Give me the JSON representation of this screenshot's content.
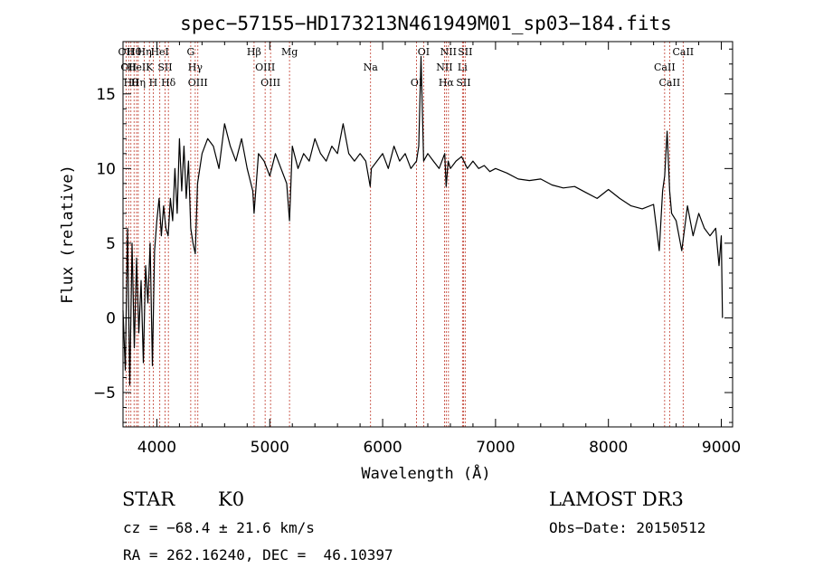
{
  "chart_data": {
    "type": "line",
    "title": "spec−57155−HD173213N461949M01_sp03−184.fits",
    "xlabel": "Wavelength (Å)",
    "ylabel": "Flux (relative)",
    "xlim": [
      3700,
      9100
    ],
    "ylim": [
      -7.3,
      18.5
    ],
    "xticks": [
      4000,
      5000,
      6000,
      7000,
      8000,
      9000
    ],
    "yticks": [
      -5,
      0,
      5,
      10,
      15
    ],
    "grid": false,
    "series": [
      {
        "x": [
          3700,
          3720,
          3740,
          3760,
          3780,
          3800,
          3820,
          3840,
          3860,
          3880,
          3900,
          3920,
          3940,
          3960,
          3980,
          4000,
          4020,
          4040,
          4060,
          4080,
          4100,
          4120,
          4140,
          4160,
          4180,
          4200,
          4220,
          4240,
          4260,
          4280,
          4300,
          4320,
          4340,
          4360,
          4380,
          4400,
          4450,
          4500,
          4550,
          4600,
          4650,
          4700,
          4750,
          4800,
          4850,
          4861,
          4900,
          4950,
          5000,
          5050,
          5100,
          5150,
          5175,
          5200,
          5250,
          5300,
          5350,
          5400,
          5450,
          5500,
          5550,
          5600,
          5650,
          5700,
          5750,
          5800,
          5850,
          5890,
          5900,
          5950,
          6000,
          6050,
          6100,
          6150,
          6200,
          6250,
          6300,
          6320,
          6340,
          6363,
          6400,
          6450,
          6500,
          6550,
          6563,
          6580,
          6600,
          6650,
          6700,
          6750,
          6800,
          6850,
          6900,
          6950,
          7000,
          7100,
          7200,
          7300,
          7400,
          7500,
          7600,
          7700,
          7800,
          7900,
          8000,
          8100,
          8200,
          8300,
          8400,
          8450,
          8480,
          8498,
          8520,
          8542,
          8560,
          8600,
          8650,
          8700,
          8750,
          8800,
          8850,
          8900,
          8950,
          8980,
          9000,
          9010
        ],
        "y": [
          0.5,
          -3.5,
          6.0,
          -4.5,
          5.0,
          -2.0,
          4.0,
          -1.0,
          2.5,
          -3.0,
          3.5,
          1.0,
          5.0,
          -3.2,
          4.5,
          6.5,
          8.0,
          5.5,
          7.5,
          6.0,
          5.5,
          8.0,
          6.5,
          10.0,
          7.0,
          12.0,
          8.5,
          11.5,
          8.0,
          10.5,
          6.0,
          5.0,
          4.3,
          9.0,
          10.0,
          11.0,
          12.0,
          11.5,
          10.0,
          13.0,
          11.5,
          10.5,
          12.0,
          10.0,
          8.5,
          7.0,
          11.0,
          10.5,
          9.5,
          11.0,
          10.0,
          9.0,
          6.5,
          11.5,
          10.0,
          11.0,
          10.5,
          12.0,
          11.0,
          10.5,
          11.5,
          11.0,
          13.0,
          11.0,
          10.5,
          11.0,
          10.5,
          8.8,
          10.0,
          10.5,
          11.0,
          10.0,
          11.5,
          10.5,
          11.0,
          10.0,
          10.5,
          11.5,
          17.5,
          10.5,
          11.0,
          10.5,
          10.0,
          11.0,
          8.8,
          10.5,
          10.0,
          10.5,
          10.8,
          10.0,
          10.5,
          10.0,
          10.2,
          9.8,
          10.0,
          9.7,
          9.3,
          9.2,
          9.3,
          8.9,
          8.7,
          8.8,
          8.4,
          8.0,
          8.6,
          8.0,
          7.5,
          7.3,
          7.6,
          4.5,
          8.5,
          9.5,
          12.5,
          8.5,
          7.0,
          6.5,
          4.5,
          7.5,
          5.5,
          7.0,
          6.0,
          5.5,
          6.0,
          3.5,
          5.5,
          0.0
        ]
      }
    ],
    "lines": [
      {
        "wl": 3727,
        "label": "OII"
      },
      {
        "wl": 3750,
        "label": "OII"
      },
      {
        "wl": 3770,
        "label": "Hθ"
      },
      {
        "wl": 3798,
        "label": "Hθ"
      },
      {
        "wl": 3820,
        "label": "HeI"
      },
      {
        "wl": 3835,
        "label": "Hη"
      },
      {
        "wl": 3889,
        "label": "Hη"
      },
      {
        "wl": 3934,
        "label": "K"
      },
      {
        "wl": 3968,
        "label": "H"
      },
      {
        "wl": 4026,
        "label": "HeI"
      },
      {
        "wl": 4072,
        "label": "SII"
      },
      {
        "wl": 4102,
        "label": "Hδ"
      },
      {
        "wl": 4300,
        "label": "G"
      },
      {
        "wl": 4340,
        "label": "Hγ"
      },
      {
        "wl": 4363,
        "label": "OIII"
      },
      {
        "wl": 4861,
        "label": "Hβ"
      },
      {
        "wl": 4959,
        "label": "OIII"
      },
      {
        "wl": 5007,
        "label": "OIII"
      },
      {
        "wl": 5175,
        "label": "Mg"
      },
      {
        "wl": 5893,
        "label": "Na"
      },
      {
        "wl": 6300,
        "label": "OI"
      },
      {
        "wl": 6363,
        "label": "OI"
      },
      {
        "wl": 6548,
        "label": "NII"
      },
      {
        "wl": 6563,
        "label": "Hα"
      },
      {
        "wl": 6583,
        "label": "NII"
      },
      {
        "wl": 6707,
        "label": "Li"
      },
      {
        "wl": 6716,
        "label": "SII"
      },
      {
        "wl": 6731,
        "label": "SII"
      },
      {
        "wl": 8498,
        "label": "CaII"
      },
      {
        "wl": 8542,
        "label": "CaII"
      },
      {
        "wl": 8662,
        "label": "CaII"
      }
    ],
    "line_color": "#c0392b",
    "spectrum_color": "#000000"
  },
  "info": {
    "class": "STAR",
    "subclass": "K0",
    "survey": "LAMOST DR3",
    "cz": "cz = −68.4 ± 21.6 km/s",
    "obs_date": "Obs−Date: 20150512",
    "radec": "RA = 262.16240, DEC =  46.10397"
  }
}
